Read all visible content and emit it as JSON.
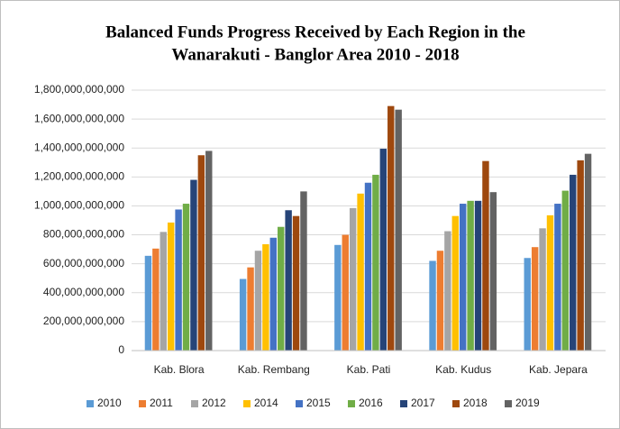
{
  "chart_data": {
    "type": "bar",
    "title": [
      "Balanced Funds Progress Received by Each Region in the",
      "Wanarakuti  - Banglor Area 2010 - 2018"
    ],
    "categories": [
      "Kab. Blora",
      "Kab. Rembang",
      "Kab. Pati",
      "Kab. Kudus",
      "Kab. Jepara"
    ],
    "series": [
      {
        "name": "2010",
        "color": "#5b9bd5",
        "values": [
          655000000000,
          495000000000,
          730000000000,
          620000000000,
          640000000000
        ]
      },
      {
        "name": "2011",
        "color": "#ed7d31",
        "values": [
          705000000000,
          575000000000,
          800000000000,
          690000000000,
          715000000000
        ]
      },
      {
        "name": "2012",
        "color": "#a5a5a5",
        "values": [
          820000000000,
          690000000000,
          985000000000,
          825000000000,
          845000000000
        ]
      },
      {
        "name": "2014",
        "color": "#ffc000",
        "values": [
          885000000000,
          735000000000,
          1085000000000,
          930000000000,
          935000000000
        ]
      },
      {
        "name": "2015",
        "color": "#4472c4",
        "values": [
          975000000000,
          780000000000,
          1160000000000,
          1015000000000,
          1015000000000
        ]
      },
      {
        "name": "2016",
        "color": "#70ad47",
        "values": [
          1015000000000,
          855000000000,
          1215000000000,
          1035000000000,
          1105000000000
        ]
      },
      {
        "name": "2017",
        "color": "#264478",
        "values": [
          1180000000000,
          970000000000,
          1395000000000,
          1035000000000,
          1215000000000
        ]
      },
      {
        "name": "2018",
        "color": "#9e480e",
        "values": [
          1350000000000,
          930000000000,
          1690000000000,
          1310000000000,
          1315000000000
        ]
      },
      {
        "name": "2019",
        "color": "#636363",
        "values": [
          1380000000000,
          1100000000000,
          1665000000000,
          1095000000000,
          1360000000000
        ]
      }
    ],
    "ylim": [
      0,
      1800000000000
    ],
    "yticks": [
      0,
      {
        "value": 200000000000,
        "label": "200,000,000,000"
      },
      {
        "value": 400000000000,
        "label": "400,000,000,000"
      },
      {
        "value": 600000000000,
        "label": "600,000,000,000"
      },
      {
        "value": 800000000000,
        "label": "800,000,000,000"
      },
      {
        "value": 1000000000000,
        "label": "1,000,000,000,000"
      },
      {
        "value": 1200000000000,
        "label": "1,200,000,000,000"
      },
      {
        "value": 1400000000000,
        "label": "1,400,000,000,000"
      },
      {
        "value": 1600000000000,
        "label": "1,600,000,000,000"
      },
      {
        "value": 1800000000000,
        "label": "1,800,000,000,000"
      }
    ],
    "grid": true,
    "legend": "bottom"
  }
}
